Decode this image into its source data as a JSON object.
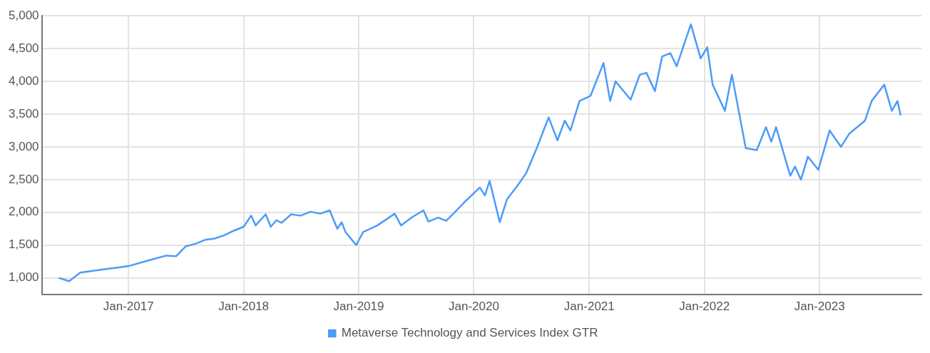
{
  "chart_data": {
    "type": "line",
    "x": [
      "2016-05-25",
      "2016-06-27",
      "2016-08-01",
      "2016-10-01",
      "2016-12-01",
      "2017-01-01",
      "2017-03-01",
      "2017-05-01",
      "2017-06-01",
      "2017-07-01",
      "2017-08-01",
      "2017-09-01",
      "2017-10-01",
      "2017-11-01",
      "2017-12-01",
      "2018-01-01",
      "2018-01-25",
      "2018-02-08",
      "2018-03-12",
      "2018-03-28",
      "2018-04-15",
      "2018-05-01",
      "2018-06-01",
      "2018-07-01",
      "2018-08-01",
      "2018-09-01",
      "2018-10-01",
      "2018-10-25",
      "2018-11-08",
      "2018-11-20",
      "2018-12-24",
      "2019-01-15",
      "2019-03-01",
      "2019-04-25",
      "2019-05-15",
      "2019-06-20",
      "2019-07-25",
      "2019-08-10",
      "2019-09-10",
      "2019-10-05",
      "2019-11-01",
      "2019-12-01",
      "2020-01-20",
      "2020-02-05",
      "2020-02-20",
      "2020-03-23",
      "2020-04-15",
      "2020-05-20",
      "2020-06-15",
      "2020-07-20",
      "2020-08-25",
      "2020-09-22",
      "2020-10-15",
      "2020-11-02",
      "2020-12-01",
      "2021-01-05",
      "2021-02-15",
      "2021-03-08",
      "2021-03-25",
      "2021-05-12",
      "2021-06-10",
      "2021-07-01",
      "2021-07-28",
      "2021-08-20",
      "2021-09-15",
      "2021-10-05",
      "2021-11-19",
      "2021-12-20",
      "2022-01-10",
      "2022-01-27",
      "2022-03-07",
      "2022-03-29",
      "2022-05-12",
      "2022-06-16",
      "2022-07-15",
      "2022-08-01",
      "2022-08-16",
      "2022-09-30",
      "2022-10-15",
      "2022-11-03",
      "2022-11-25",
      "2022-12-28",
      "2023-02-02",
      "2023-03-10",
      "2023-04-05",
      "2023-05-25",
      "2023-06-15",
      "2023-07-25",
      "2023-08-18",
      "2023-09-05",
      "2023-09-15"
    ],
    "series": [
      {
        "name": "Metaverse Technology and Services Index GTR",
        "color": "#4d9bf8",
        "values": [
          1000,
          950,
          1080,
          1120,
          1160,
          1180,
          1260,
          1340,
          1330,
          1480,
          1520,
          1580,
          1600,
          1650,
          1720,
          1780,
          1950,
          1800,
          1970,
          1780,
          1880,
          1840,
          1970,
          1950,
          2010,
          1980,
          2030,
          1750,
          1850,
          1700,
          1500,
          1700,
          1800,
          1980,
          1800,
          1930,
          2030,
          1860,
          1920,
          1870,
          2000,
          2150,
          2380,
          2260,
          2480,
          1850,
          2200,
          2420,
          2600,
          3000,
          3450,
          3100,
          3400,
          3250,
          3700,
          3780,
          4280,
          3700,
          4000,
          3720,
          4100,
          4130,
          3850,
          4380,
          4430,
          4230,
          4870,
          4350,
          4520,
          3950,
          3550,
          4100,
          2980,
          2950,
          3300,
          3080,
          3300,
          2560,
          2700,
          2500,
          2850,
          2650,
          3250,
          3000,
          3200,
          3400,
          3700,
          3950,
          3550,
          3700,
          3480
        ]
      }
    ],
    "xlim": [
      "2016-04-01",
      "2023-11-20"
    ],
    "xticks": [
      {
        "value": "2017-01",
        "label": "Jan-2017"
      },
      {
        "value": "2018-01",
        "label": "Jan-2018"
      },
      {
        "value": "2019-01",
        "label": "Jan-2019"
      },
      {
        "value": "2020-01",
        "label": "Jan-2020"
      },
      {
        "value": "2021-01",
        "label": "Jan-2021"
      },
      {
        "value": "2022-01",
        "label": "Jan-2022"
      },
      {
        "value": "2023-01",
        "label": "Jan-2023"
      }
    ],
    "ylim": [
      750,
      5000
    ],
    "yticks": [
      {
        "value": 1000,
        "label": "1,000"
      },
      {
        "value": 1500,
        "label": "1,500"
      },
      {
        "value": 2000,
        "label": "2,000"
      },
      {
        "value": 2500,
        "label": "2,500"
      },
      {
        "value": 3000,
        "label": "3,000"
      },
      {
        "value": 3500,
        "label": "3,500"
      },
      {
        "value": 4000,
        "label": "4,000"
      },
      {
        "value": 4500,
        "label": "4,500"
      },
      {
        "value": 5000,
        "label": "5,000"
      }
    ],
    "grid": true,
    "legend": "bottom",
    "marker": "none",
    "line_style": "solid"
  }
}
